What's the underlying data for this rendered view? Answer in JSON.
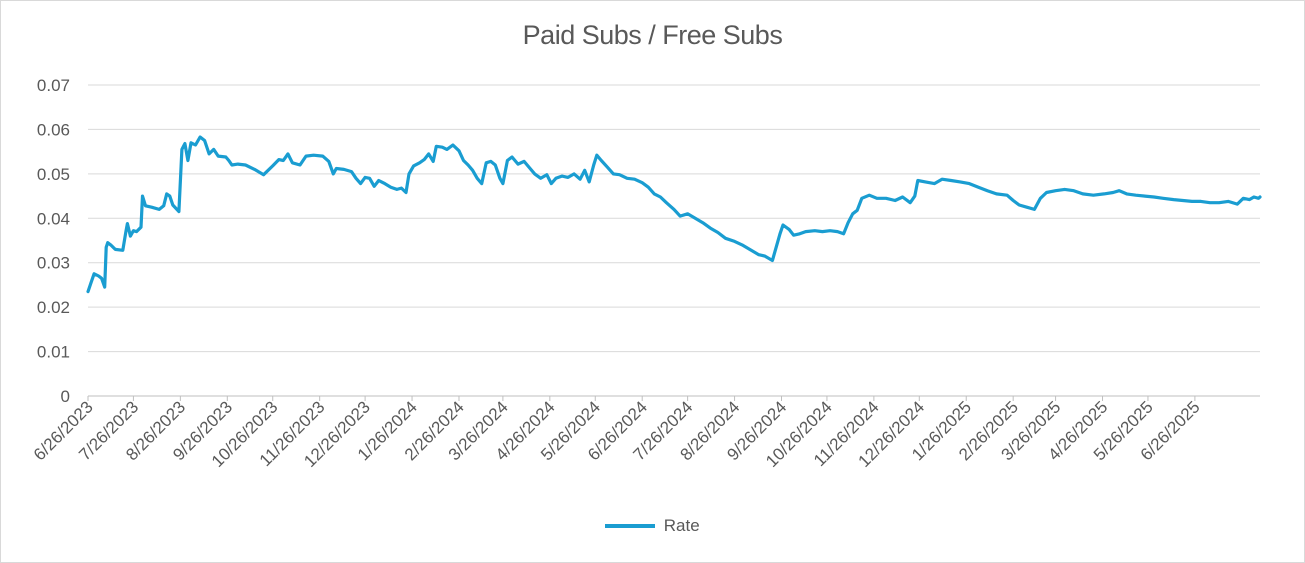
{
  "chart_data": {
    "type": "line",
    "title": "Paid Subs / Free Subs",
    "xlabel": "",
    "ylabel": "",
    "ylim": [
      0,
      0.07
    ],
    "yticks": [
      "0",
      "0.01",
      "0.02",
      "0.03",
      "0.04",
      "0.05",
      "0.06",
      "0.07"
    ],
    "xticks": [
      "6/26/2023",
      "7/26/2023",
      "8/26/2023",
      "9/26/2023",
      "10/26/2023",
      "11/26/2023",
      "12/26/2023",
      "1/26/2024",
      "2/26/2024",
      "3/26/2024",
      "4/26/2024",
      "5/26/2024",
      "6/26/2024",
      "7/26/2024",
      "8/26/2024",
      "9/26/2024",
      "10/26/2024",
      "11/26/2024",
      "12/26/2024",
      "1/26/2025",
      "2/26/2025",
      "3/26/2025",
      "4/26/2025",
      "5/26/2025",
      "6/26/2025"
    ],
    "grid": true,
    "legend": "bottom",
    "series": [
      {
        "name": "Rate",
        "color": "#1a9dd1",
        "points": [
          [
            "2023-06-26",
            0.0235
          ],
          [
            "2023-06-28",
            0.0255
          ],
          [
            "2023-06-30",
            0.0275
          ],
          [
            "2023-07-03",
            0.027
          ],
          [
            "2023-07-05",
            0.0265
          ],
          [
            "2023-07-07",
            0.0245
          ],
          [
            "2023-07-08",
            0.0335
          ],
          [
            "2023-07-09",
            0.0345
          ],
          [
            "2023-07-11",
            0.034
          ],
          [
            "2023-07-14",
            0.033
          ],
          [
            "2023-07-19",
            0.0328
          ],
          [
            "2023-07-21",
            0.037
          ],
          [
            "2023-07-22",
            0.0388
          ],
          [
            "2023-07-24",
            0.036
          ],
          [
            "2023-07-26",
            0.0372
          ],
          [
            "2023-07-28",
            0.037
          ],
          [
            "2023-07-31",
            0.038
          ],
          [
            "2023-08-01",
            0.045
          ],
          [
            "2023-08-03",
            0.0428
          ],
          [
            "2023-08-07",
            0.0425
          ],
          [
            "2023-08-12",
            0.042
          ],
          [
            "2023-08-15",
            0.0428
          ],
          [
            "2023-08-17",
            0.0455
          ],
          [
            "2023-08-19",
            0.045
          ],
          [
            "2023-08-21",
            0.043
          ],
          [
            "2023-08-25",
            0.0415
          ],
          [
            "2023-08-27",
            0.0555
          ],
          [
            "2023-08-29",
            0.0568
          ],
          [
            "2023-08-31",
            0.053
          ],
          [
            "2023-09-02",
            0.057
          ],
          [
            "2023-09-05",
            0.0565
          ],
          [
            "2023-09-08",
            0.0583
          ],
          [
            "2023-09-11",
            0.0575
          ],
          [
            "2023-09-14",
            0.0545
          ],
          [
            "2023-09-17",
            0.0555
          ],
          [
            "2023-09-20",
            0.054
          ],
          [
            "2023-09-25",
            0.0538
          ],
          [
            "2023-09-27",
            0.053
          ],
          [
            "2023-09-29",
            0.052
          ],
          [
            "2023-10-03",
            0.0522
          ],
          [
            "2023-10-08",
            0.052
          ],
          [
            "2023-10-14",
            0.051
          ],
          [
            "2023-10-20",
            0.0498
          ],
          [
            "2023-10-26",
            0.0518
          ],
          [
            "2023-10-30",
            0.0532
          ],
          [
            "2023-11-02",
            0.053
          ],
          [
            "2023-11-05",
            0.0545
          ],
          [
            "2023-11-08",
            0.0525
          ],
          [
            "2023-11-13",
            0.052
          ],
          [
            "2023-11-17",
            0.054
          ],
          [
            "2023-11-22",
            0.0542
          ],
          [
            "2023-11-28",
            0.054
          ],
          [
            "2023-12-02",
            0.0528
          ],
          [
            "2023-12-05",
            0.05
          ],
          [
            "2023-12-07",
            0.0512
          ],
          [
            "2023-12-12",
            0.051
          ],
          [
            "2023-12-17",
            0.0505
          ],
          [
            "2023-12-20",
            0.049
          ],
          [
            "2023-12-23",
            0.0478
          ],
          [
            "2023-12-26",
            0.0492
          ],
          [
            "2023-12-29",
            0.049
          ],
          [
            "2024-01-01",
            0.0472
          ],
          [
            "2024-01-04",
            0.0485
          ],
          [
            "2024-01-08",
            0.0478
          ],
          [
            "2024-01-12",
            0.047
          ],
          [
            "2024-01-16",
            0.0465
          ],
          [
            "2024-01-19",
            0.0468
          ],
          [
            "2024-01-22",
            0.0458
          ],
          [
            "2024-01-24",
            0.05
          ],
          [
            "2024-01-27",
            0.0518
          ],
          [
            "2024-01-31",
            0.0525
          ],
          [
            "2024-02-03",
            0.0532
          ],
          [
            "2024-02-06",
            0.0545
          ],
          [
            "2024-02-09",
            0.0528
          ],
          [
            "2024-02-11",
            0.0562
          ],
          [
            "2024-02-15",
            0.056
          ],
          [
            "2024-02-18",
            0.0555
          ],
          [
            "2024-02-22",
            0.0565
          ],
          [
            "2024-02-26",
            0.0552
          ],
          [
            "2024-02-29",
            0.053
          ],
          [
            "2024-03-03",
            0.052
          ],
          [
            "2024-03-06",
            0.0508
          ],
          [
            "2024-03-09",
            0.049
          ],
          [
            "2024-03-12",
            0.0478
          ],
          [
            "2024-03-15",
            0.0525
          ],
          [
            "2024-03-18",
            0.0528
          ],
          [
            "2024-03-21",
            0.052
          ],
          [
            "2024-03-24",
            0.049
          ],
          [
            "2024-03-26",
            0.0478
          ],
          [
            "2024-03-29",
            0.053
          ],
          [
            "2024-04-01",
            0.0538
          ],
          [
            "2024-04-05",
            0.0522
          ],
          [
            "2024-04-09",
            0.0528
          ],
          [
            "2024-04-13",
            0.0512
          ],
          [
            "2024-04-16",
            0.05
          ],
          [
            "2024-04-20",
            0.049
          ],
          [
            "2024-04-24",
            0.0498
          ],
          [
            "2024-04-27",
            0.0478
          ],
          [
            "2024-04-30",
            0.049
          ],
          [
            "2024-05-04",
            0.0495
          ],
          [
            "2024-05-08",
            0.0492
          ],
          [
            "2024-05-12",
            0.05
          ],
          [
            "2024-05-16",
            0.0488
          ],
          [
            "2024-05-19",
            0.0508
          ],
          [
            "2024-05-22",
            0.0482
          ],
          [
            "2024-05-25",
            0.052
          ],
          [
            "2024-05-27",
            0.0542
          ],
          [
            "2024-05-30",
            0.053
          ],
          [
            "2024-06-03",
            0.0515
          ],
          [
            "2024-06-07",
            0.05
          ],
          [
            "2024-06-11",
            0.0498
          ],
          [
            "2024-06-16",
            0.049
          ],
          [
            "2024-06-21",
            0.0488
          ],
          [
            "2024-06-26",
            0.048
          ],
          [
            "2024-06-30",
            0.047
          ],
          [
            "2024-07-04",
            0.0455
          ],
          [
            "2024-07-08",
            0.0448
          ],
          [
            "2024-07-12",
            0.0435
          ],
          [
            "2024-07-17",
            0.042
          ],
          [
            "2024-07-21",
            0.0405
          ],
          [
            "2024-07-26",
            0.041
          ],
          [
            "2024-07-31",
            0.04
          ],
          [
            "2024-08-05",
            0.039
          ],
          [
            "2024-08-10",
            0.0378
          ],
          [
            "2024-08-15",
            0.0368
          ],
          [
            "2024-08-20",
            0.0355
          ],
          [
            "2024-08-26",
            0.0348
          ],
          [
            "2024-08-31",
            0.034
          ],
          [
            "2024-09-05",
            0.033
          ],
          [
            "2024-09-11",
            0.0318
          ],
          [
            "2024-09-15",
            0.0315
          ],
          [
            "2024-09-20",
            0.0305
          ],
          [
            "2024-09-25",
            0.0365
          ],
          [
            "2024-09-27",
            0.0385
          ],
          [
            "2024-10-01",
            0.0375
          ],
          [
            "2024-10-04",
            0.0362
          ],
          [
            "2024-10-08",
            0.0365
          ],
          [
            "2024-10-12",
            0.037
          ],
          [
            "2024-10-18",
            0.0372
          ],
          [
            "2024-10-23",
            0.037
          ],
          [
            "2024-10-28",
            0.0372
          ],
          [
            "2024-11-02",
            0.037
          ],
          [
            "2024-11-06",
            0.0365
          ],
          [
            "2024-11-09",
            0.039
          ],
          [
            "2024-11-12",
            0.041
          ],
          [
            "2024-11-15",
            0.0418
          ],
          [
            "2024-11-18",
            0.0445
          ],
          [
            "2024-11-23",
            0.0452
          ],
          [
            "2024-11-28",
            0.0445
          ],
          [
            "2024-12-04",
            0.0445
          ],
          [
            "2024-12-10",
            0.044
          ],
          [
            "2024-12-15",
            0.0448
          ],
          [
            "2024-12-20",
            0.0435
          ],
          [
            "2024-12-23",
            0.045
          ],
          [
            "2024-12-25",
            0.0485
          ],
          [
            "2024-12-30",
            0.0482
          ],
          [
            "2025-01-05",
            0.0478
          ],
          [
            "2025-01-10",
            0.0488
          ],
          [
            "2025-01-16",
            0.0485
          ],
          [
            "2025-01-22",
            0.0482
          ],
          [
            "2025-01-28",
            0.0478
          ],
          [
            "2025-02-03",
            0.047
          ],
          [
            "2025-02-09",
            0.0462
          ],
          [
            "2025-02-15",
            0.0455
          ],
          [
            "2025-02-22",
            0.0452
          ],
          [
            "2025-02-26",
            0.044
          ],
          [
            "2025-03-02",
            0.043
          ],
          [
            "2025-03-07",
            0.0425
          ],
          [
            "2025-03-12",
            0.042
          ],
          [
            "2025-03-16",
            0.0445
          ],
          [
            "2025-03-20",
            0.0458
          ],
          [
            "2025-03-26",
            0.0462
          ],
          [
            "2025-04-01",
            0.0465
          ],
          [
            "2025-04-07",
            0.0462
          ],
          [
            "2025-04-13",
            0.0455
          ],
          [
            "2025-04-20",
            0.0452
          ],
          [
            "2025-04-27",
            0.0455
          ],
          [
            "2025-05-03",
            0.0458
          ],
          [
            "2025-05-07",
            0.0462
          ],
          [
            "2025-05-12",
            0.0455
          ],
          [
            "2025-05-18",
            0.0452
          ],
          [
            "2025-05-24",
            0.045
          ],
          [
            "2025-05-30",
            0.0448
          ],
          [
            "2025-06-05",
            0.0445
          ],
          [
            "2025-06-12",
            0.0442
          ],
          [
            "2025-06-18",
            0.044
          ],
          [
            "2025-06-24",
            0.0438
          ],
          [
            "2025-06-30",
            0.0438
          ],
          [
            "2025-07-06",
            0.0435
          ],
          [
            "2025-07-12",
            0.0435
          ],
          [
            "2025-07-18",
            0.0438
          ],
          [
            "2025-07-24",
            0.0432
          ],
          [
            "2025-07-28",
            0.0445
          ],
          [
            "2025-08-01",
            0.0442
          ],
          [
            "2025-08-04",
            0.0448
          ],
          [
            "2025-08-07",
            0.0445
          ],
          [
            "2025-08-08",
            0.0448
          ]
        ]
      }
    ]
  }
}
